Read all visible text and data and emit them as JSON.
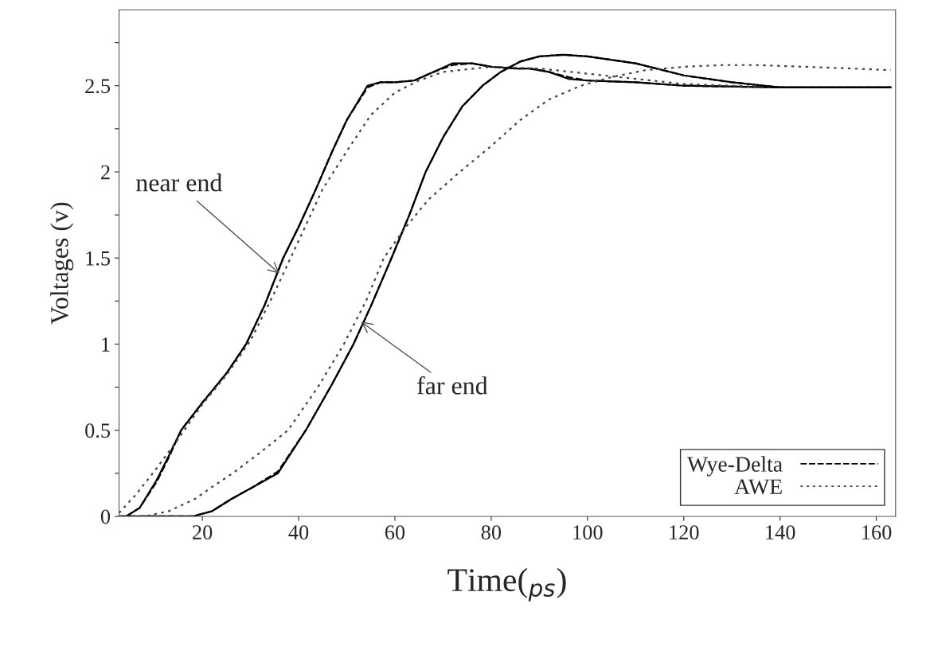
{
  "chart_data": {
    "type": "line",
    "xlabel": "Time($_{ps}$)",
    "ylabel": "Voltages (v)",
    "xlim": [
      2.7,
      164
    ],
    "ylim": [
      0,
      2.94
    ],
    "xticks": [
      20,
      40,
      60,
      80,
      100,
      120,
      140,
      160
    ],
    "yticks": [
      0,
      {
        "value": 0.25,
        "label": null
      },
      0.5,
      {
        "value": 0.75,
        "label": null
      },
      1,
      {
        "value": 1.25,
        "label": null
      },
      1.5,
      {
        "value": 1.75,
        "label": null
      },
      2,
      {
        "value": 2.25,
        "label": null
      },
      2.5,
      {
        "value": 2.75,
        "label": null
      }
    ],
    "grid": false,
    "legend": "bottom right",
    "series": [
      {
        "color": "#000000",
        "line_style": "solid",
        "x": [
          4.2,
          7,
          10.5,
          13,
          15.6,
          20,
          25,
          29.1,
          33,
          36.8,
          40,
          43.6,
          47,
          50,
          54.3,
          57,
          60,
          64,
          68,
          72,
          76,
          80,
          85,
          88,
          92,
          96,
          100,
          110,
          120,
          140,
          163
        ],
        "values": [
          0,
          0.05,
          0.21,
          0.35,
          0.5,
          0.66,
          0.83,
          1.0,
          1.23,
          1.5,
          1.68,
          1.9,
          2.12,
          2.3,
          2.5,
          2.52,
          2.52,
          2.53,
          2.58,
          2.63,
          2.63,
          2.61,
          2.6,
          2.6,
          2.58,
          2.54,
          2.53,
          2.52,
          2.5,
          2.49,
          2.49
        ]
      },
      {
        "name": "Wye-Delta",
        "color": "#000000",
        "line_style": "dashed",
        "x": [
          4.2,
          7,
          10.5,
          13,
          15.6,
          20,
          25,
          29.1,
          33,
          36.8,
          40,
          43.6,
          47,
          50,
          54.3,
          57,
          60,
          64,
          68,
          72,
          76,
          80,
          85,
          88,
          92,
          96,
          100,
          110,
          120,
          140,
          163
        ],
        "values": [
          0,
          0.05,
          0.2,
          0.34,
          0.5,
          0.66,
          0.83,
          1.0,
          1.23,
          1.5,
          1.68,
          1.9,
          2.12,
          2.3,
          2.49,
          2.52,
          2.52,
          2.53,
          2.58,
          2.62,
          2.63,
          2.61,
          2.6,
          2.6,
          2.58,
          2.55,
          2.53,
          2.52,
          2.5,
          2.49,
          2.49
        ]
      },
      {
        "name": "AWE",
        "color": "#444444",
        "line_style": "dotted",
        "x": [
          2.7,
          6,
          10,
          15,
          20,
          25,
          30,
          35,
          40,
          45,
          50,
          55,
          60,
          65,
          70,
          80,
          90,
          100,
          110,
          120,
          140,
          163
        ],
        "values": [
          0.02,
          0.12,
          0.26,
          0.45,
          0.65,
          0.82,
          1.02,
          1.3,
          1.6,
          1.9,
          2.12,
          2.33,
          2.46,
          2.53,
          2.58,
          2.61,
          2.6,
          2.57,
          2.54,
          2.51,
          2.49,
          2.49
        ]
      },
      {
        "color": "#000000",
        "line_style": "solid",
        "x": [
          2.7,
          18,
          22,
          26,
          30.5,
          35.7,
          41.5,
          47,
          51.4,
          55,
          59.3,
          63,
          66.4,
          70,
          74,
          78.2,
          82,
          86,
          90,
          95,
          100,
          110,
          120,
          130,
          140,
          163
        ],
        "values": [
          0,
          0,
          0.03,
          0.1,
          0.17,
          0.25,
          0.5,
          0.77,
          1.0,
          1.22,
          1.5,
          1.75,
          2.0,
          2.2,
          2.38,
          2.5,
          2.58,
          2.64,
          2.67,
          2.68,
          2.67,
          2.63,
          2.56,
          2.52,
          2.49,
          2.49
        ]
      },
      {
        "color": "#000000",
        "line_style": "dashed",
        "x": [
          2.7,
          18,
          22,
          26,
          30.5,
          35.7,
          41.5,
          47,
          51.4,
          55,
          59.3,
          63,
          66.4,
          70,
          74,
          78.2,
          82,
          86,
          90,
          95,
          100,
          110,
          120,
          130,
          140,
          163
        ],
        "values": [
          0,
          0,
          0.03,
          0.1,
          0.17,
          0.26,
          0.5,
          0.77,
          1.0,
          1.22,
          1.5,
          1.75,
          2.0,
          2.2,
          2.38,
          2.5,
          2.58,
          2.64,
          2.67,
          2.68,
          2.67,
          2.63,
          2.56,
          2.52,
          2.49,
          2.49
        ]
      },
      {
        "color": "#444444",
        "line_style": "dotted",
        "x": [
          2.7,
          8,
          13,
          18.4,
          22,
          26.3,
          32,
          37.8,
          44,
          49.4,
          54,
          57.7,
          62,
          67,
          73.5,
          80,
          86,
          92,
          98.6,
          105,
          112,
          120,
          128,
          135,
          145,
          155,
          163
        ],
        "values": [
          0,
          0,
          0.03,
          0.1,
          0.17,
          0.25,
          0.37,
          0.5,
          0.75,
          1.0,
          1.25,
          1.5,
          1.67,
          1.84,
          2.0,
          2.15,
          2.3,
          2.42,
          2.5,
          2.55,
          2.59,
          2.61,
          2.62,
          2.62,
          2.61,
          2.6,
          2.59
        ]
      }
    ],
    "annotations": [
      {
        "text": "near end",
        "x": 36,
        "y": 1.41
      },
      {
        "text": "far end",
        "x": 53,
        "y": 1.13
      }
    ]
  }
}
